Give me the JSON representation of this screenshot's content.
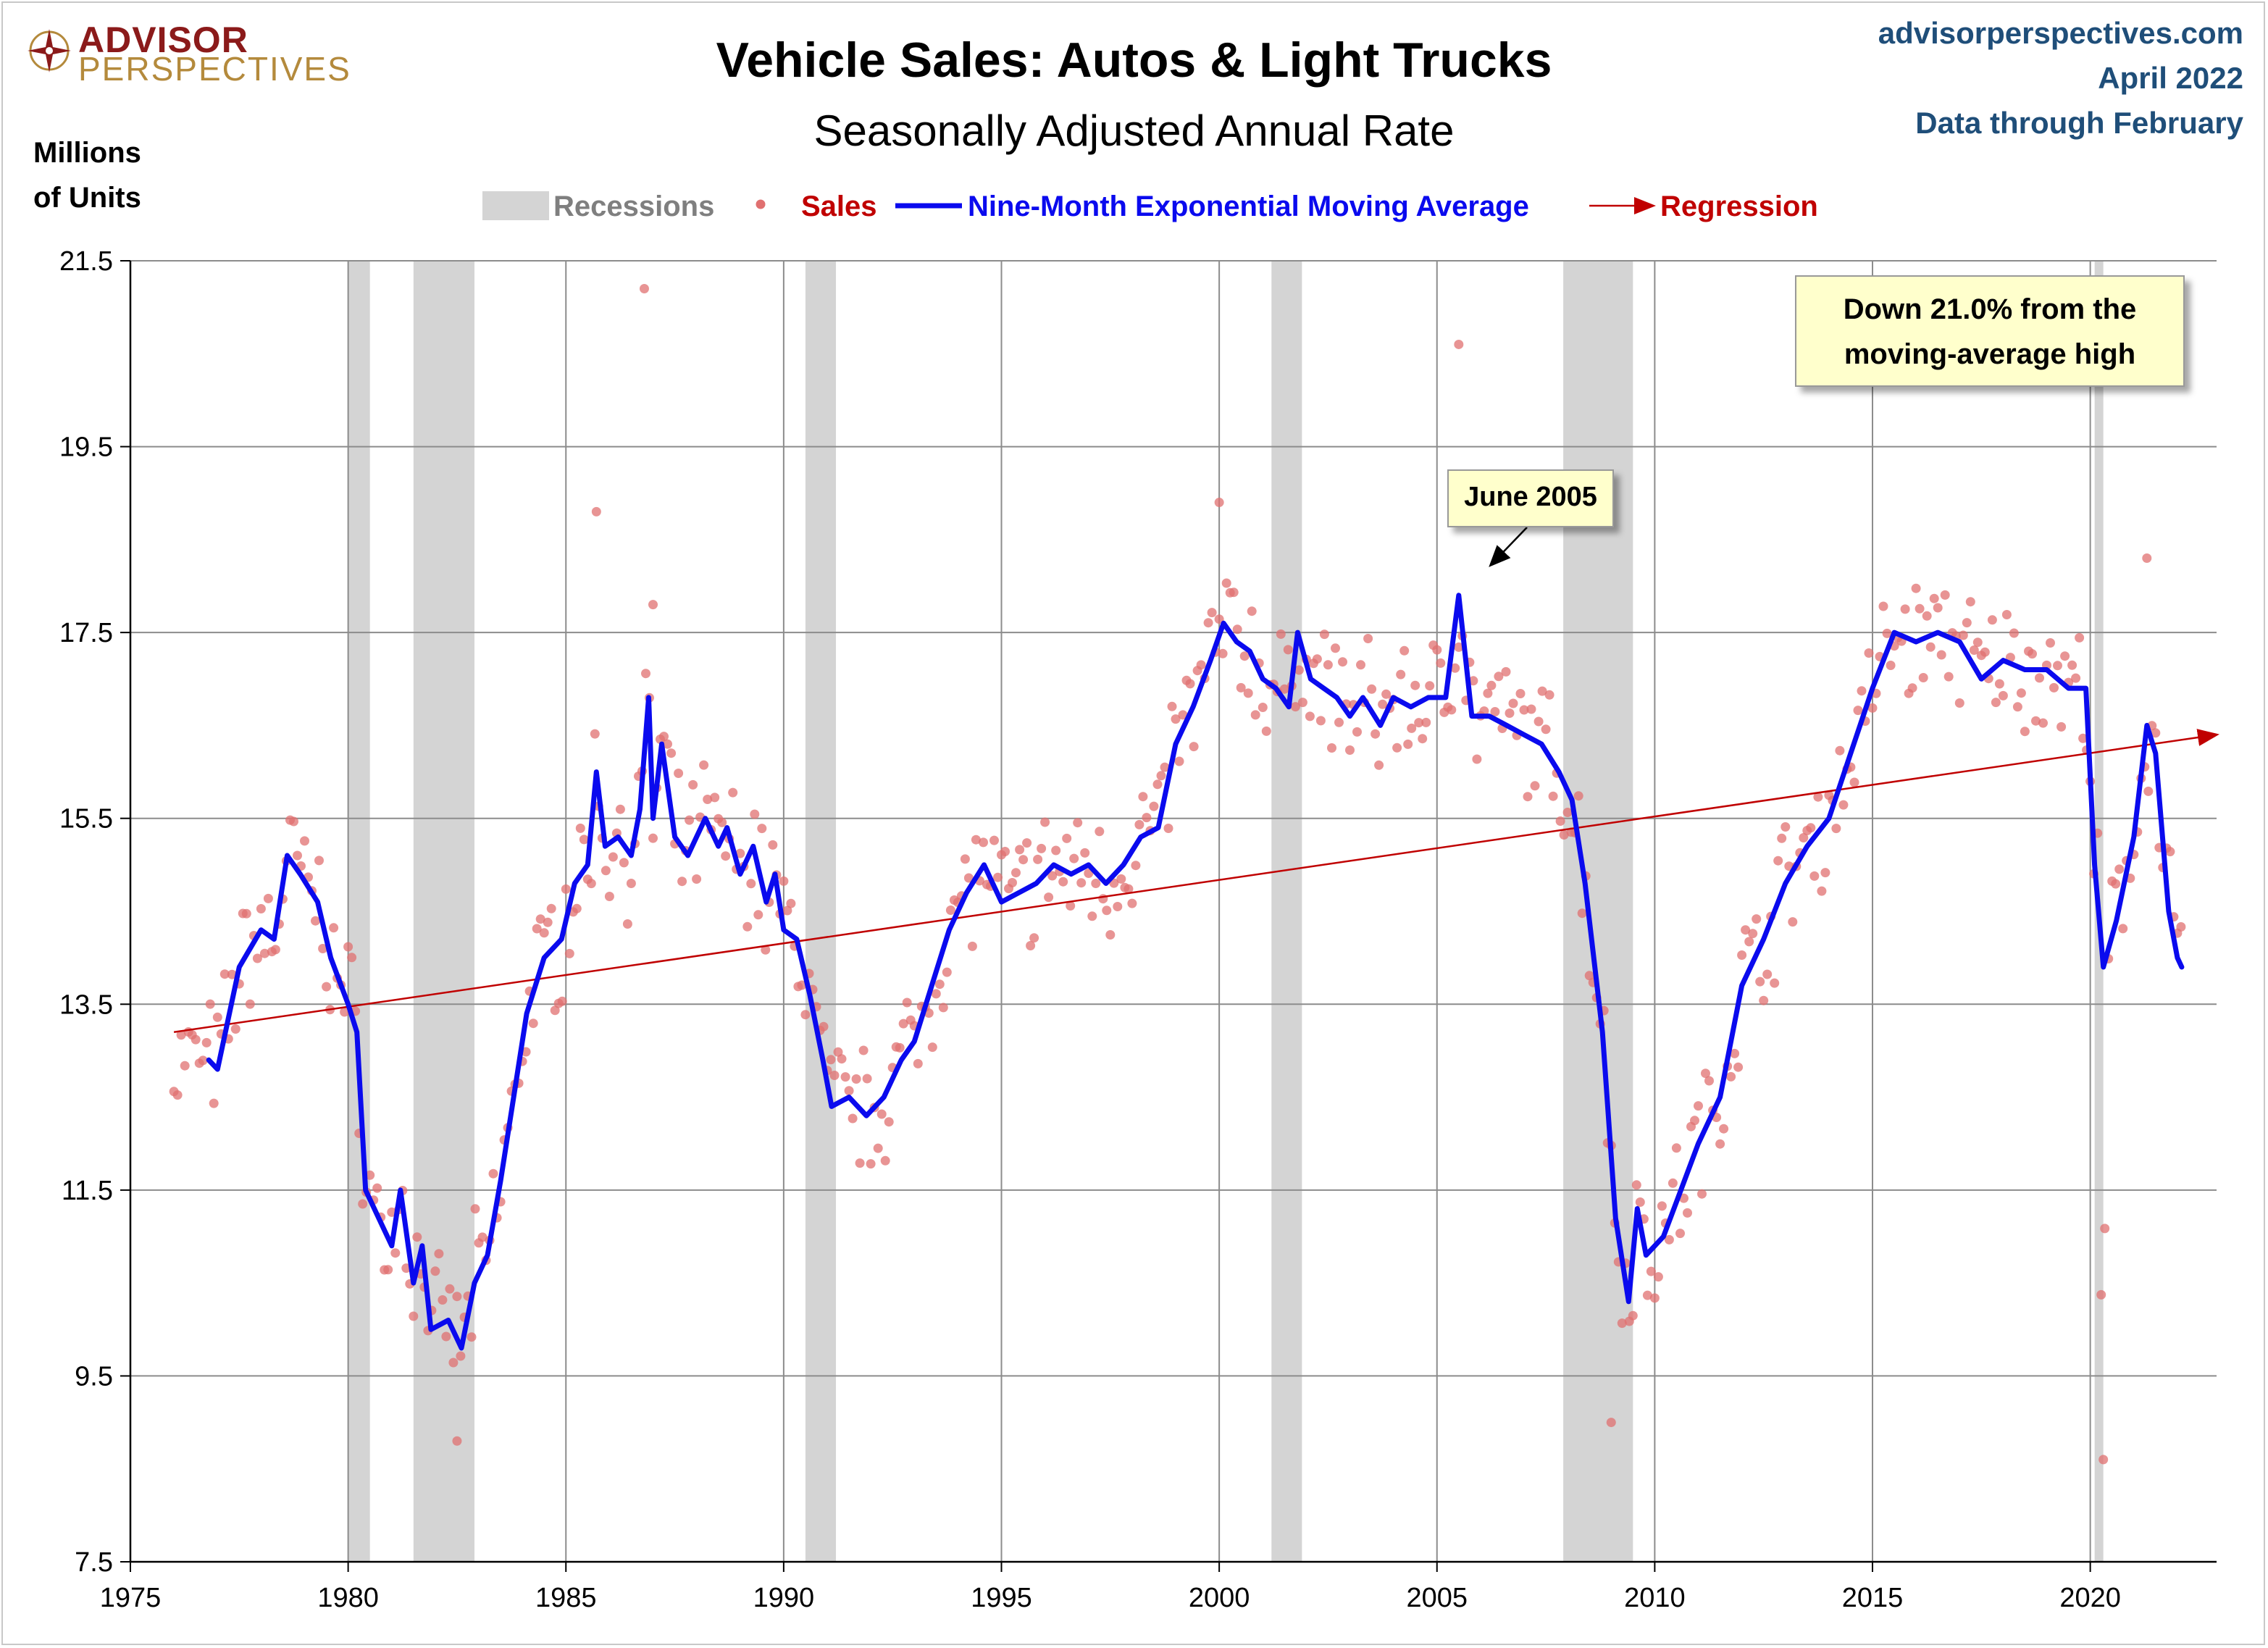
{
  "header": {
    "logo_top": "ADVISOR",
    "logo_bottom": "PERSPECTIVES",
    "site": "advisorperspectives.com",
    "date": "April 2022",
    "data_through": "Data through February"
  },
  "callouts": {
    "down": [
      "Down 21.0% from the",
      "moving-average high"
    ],
    "june": "June 2005"
  },
  "colors": {
    "sales": "#e07070",
    "ema": "#0a0aee",
    "regression": "#c00000",
    "recession": "#d4d4d4",
    "grid": "#8c8c8c",
    "header_blue": "#1f4e79"
  },
  "chart_data": {
    "type": "scatter",
    "title": "Vehicle Sales: Autos & Light Trucks",
    "subtitle": "Seasonally Adjusted Annual Rate",
    "ylabel": [
      "Millions",
      "of Units"
    ],
    "xlabel": "",
    "xlim": [
      1975,
      2022.9
    ],
    "ylim": [
      7.5,
      21.5
    ],
    "yticks": [
      "21.5",
      "19.5",
      "17.5",
      "15.5",
      "13.5",
      "11.5",
      "9.5",
      "7.5"
    ],
    "xticks": [
      "1975",
      "1980",
      "1985",
      "1990",
      "1995",
      "2000",
      "2005",
      "2010",
      "2015",
      "2020"
    ],
    "grid": true,
    "legend": [
      {
        "label": "Recessions",
        "kind": "band"
      },
      {
        "label": "Sales",
        "kind": "dot"
      },
      {
        "label": "Nine-Month Exponential Moving Average",
        "kind": "line"
      },
      {
        "label": "Regression",
        "kind": "arrow"
      }
    ],
    "recessions": [
      [
        1980.0,
        1980.5
      ],
      [
        1981.5,
        1982.9
      ],
      [
        1990.5,
        1991.2
      ],
      [
        2001.2,
        2001.9
      ],
      [
        2007.9,
        2009.5
      ],
      [
        2020.1,
        2020.3
      ]
    ],
    "ema_anchors": [
      [
        1976.8,
        12.9
      ],
      [
        1977.0,
        12.8
      ],
      [
        1977.5,
        13.9
      ],
      [
        1978.0,
        14.3
      ],
      [
        1978.3,
        14.2
      ],
      [
        1978.6,
        15.1
      ],
      [
        1978.9,
        14.9
      ],
      [
        1979.3,
        14.6
      ],
      [
        1979.6,
        14.0
      ],
      [
        1980.0,
        13.5
      ],
      [
        1980.2,
        13.2
      ],
      [
        1980.4,
        11.5
      ],
      [
        1980.7,
        11.2
      ],
      [
        1981.0,
        10.9
      ],
      [
        1981.2,
        11.5
      ],
      [
        1981.5,
        10.5
      ],
      [
        1981.7,
        10.9
      ],
      [
        1981.9,
        10.0
      ],
      [
        1982.3,
        10.1
      ],
      [
        1982.6,
        9.8
      ],
      [
        1982.9,
        10.5
      ],
      [
        1983.2,
        10.8
      ],
      [
        1983.5,
        11.6
      ],
      [
        1983.8,
        12.5
      ],
      [
        1984.1,
        13.4
      ],
      [
        1984.5,
        14.0
      ],
      [
        1984.9,
        14.2
      ],
      [
        1985.2,
        14.8
      ],
      [
        1985.5,
        15.0
      ],
      [
        1985.7,
        16.0
      ],
      [
        1985.9,
        15.2
      ],
      [
        1986.2,
        15.3
      ],
      [
        1986.5,
        15.1
      ],
      [
        1986.7,
        15.6
      ],
      [
        1986.9,
        16.8
      ],
      [
        1987.0,
        15.5
      ],
      [
        1987.2,
        16.3
      ],
      [
        1987.5,
        15.3
      ],
      [
        1987.8,
        15.1
      ],
      [
        1988.0,
        15.3
      ],
      [
        1988.2,
        15.5
      ],
      [
        1988.5,
        15.2
      ],
      [
        1988.7,
        15.4
      ],
      [
        1989.0,
        14.9
      ],
      [
        1989.3,
        15.2
      ],
      [
        1989.6,
        14.6
      ],
      [
        1989.8,
        14.9
      ],
      [
        1990.0,
        14.3
      ],
      [
        1990.3,
        14.2
      ],
      [
        1990.6,
        13.6
      ],
      [
        1990.9,
        12.9
      ],
      [
        1991.1,
        12.4
      ],
      [
        1991.5,
        12.5
      ],
      [
        1991.9,
        12.3
      ],
      [
        1992.3,
        12.5
      ],
      [
        1992.7,
        12.9
      ],
      [
        1993.0,
        13.1
      ],
      [
        1993.4,
        13.7
      ],
      [
        1993.8,
        14.3
      ],
      [
        1994.2,
        14.7
      ],
      [
        1994.6,
        15.0
      ],
      [
        1995.0,
        14.6
      ],
      [
        1995.4,
        14.7
      ],
      [
        1995.8,
        14.8
      ],
      [
        1996.2,
        15.0
      ],
      [
        1996.6,
        14.9
      ],
      [
        1997.0,
        15.0
      ],
      [
        1997.4,
        14.8
      ],
      [
        1997.8,
        15.0
      ],
      [
        1998.2,
        15.3
      ],
      [
        1998.6,
        15.4
      ],
      [
        1999.0,
        16.3
      ],
      [
        1999.4,
        16.7
      ],
      [
        1999.8,
        17.2
      ],
      [
        2000.1,
        17.6
      ],
      [
        2000.4,
        17.4
      ],
      [
        2000.7,
        17.3
      ],
      [
        2001.0,
        17.0
      ],
      [
        2001.3,
        16.9
      ],
      [
        2001.6,
        16.7
      ],
      [
        2001.8,
        17.5
      ],
      [
        2002.1,
        17.0
      ],
      [
        2002.4,
        16.9
      ],
      [
        2002.7,
        16.8
      ],
      [
        2003.0,
        16.6
      ],
      [
        2003.3,
        16.8
      ],
      [
        2003.7,
        16.5
      ],
      [
        2004.0,
        16.8
      ],
      [
        2004.4,
        16.7
      ],
      [
        2004.8,
        16.8
      ],
      [
        2005.2,
        16.8
      ],
      [
        2005.5,
        17.9
      ],
      [
        2005.8,
        16.6
      ],
      [
        2006.2,
        16.6
      ],
      [
        2006.6,
        16.5
      ],
      [
        2007.0,
        16.4
      ],
      [
        2007.4,
        16.3
      ],
      [
        2007.8,
        16.0
      ],
      [
        2008.1,
        15.7
      ],
      [
        2008.4,
        14.8
      ],
      [
        2008.8,
        13.2
      ],
      [
        2009.1,
        11.2
      ],
      [
        2009.4,
        10.3
      ],
      [
        2009.6,
        11.3
      ],
      [
        2009.8,
        10.8
      ],
      [
        2010.2,
        11.0
      ],
      [
        2010.6,
        11.5
      ],
      [
        2011.0,
        12.0
      ],
      [
        2011.5,
        12.5
      ],
      [
        2012.0,
        13.7
      ],
      [
        2012.5,
        14.2
      ],
      [
        2013.0,
        14.8
      ],
      [
        2013.5,
        15.2
      ],
      [
        2014.0,
        15.5
      ],
      [
        2014.5,
        16.2
      ],
      [
        2015.0,
        16.9
      ],
      [
        2015.5,
        17.5
      ],
      [
        2016.0,
        17.4
      ],
      [
        2016.5,
        17.5
      ],
      [
        2017.0,
        17.4
      ],
      [
        2017.5,
        17.0
      ],
      [
        2018.0,
        17.2
      ],
      [
        2018.5,
        17.1
      ],
      [
        2019.0,
        17.1
      ],
      [
        2019.5,
        16.9
      ],
      [
        2019.9,
        16.9
      ],
      [
        2020.1,
        15.0
      ],
      [
        2020.3,
        13.9
      ],
      [
        2020.6,
        14.4
      ],
      [
        2021.0,
        15.3
      ],
      [
        2021.3,
        16.5
      ],
      [
        2021.5,
        16.2
      ],
      [
        2021.8,
        14.5
      ],
      [
        2022.0,
        14.0
      ],
      [
        2022.1,
        13.9
      ]
    ],
    "regression": {
      "start": [
        1976.0,
        13.2
      ],
      "end": [
        2022.9,
        16.4
      ]
    },
    "sales_note": "monthly SAAR sales points shown as scatter dots"
  }
}
